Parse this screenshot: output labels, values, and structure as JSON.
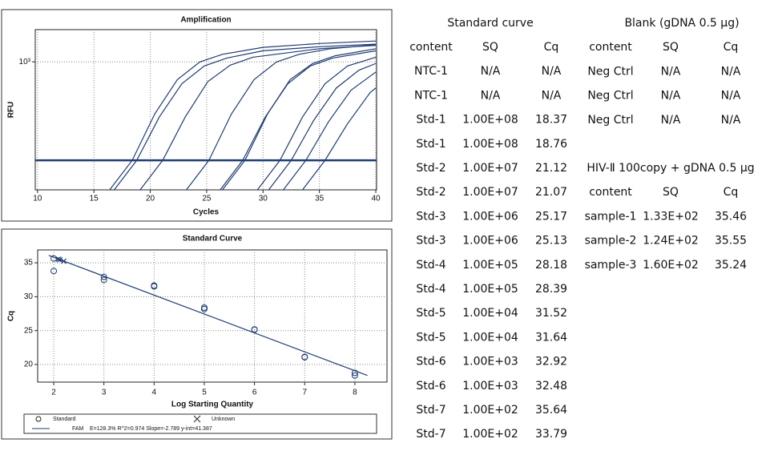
{
  "chart_data": [
    {
      "type": "line",
      "title": "Amplification",
      "x_label": "Cycles",
      "y_label": "RFU",
      "log_y": true,
      "grid": true,
      "color": "#1f3b73",
      "xlim": [
        9.8,
        40.07
      ],
      "xticks": [
        10,
        15,
        20,
        25,
        30,
        35,
        40
      ],
      "ylim": [
        200,
        1500
      ],
      "yticks": [
        {
          "value": 1000,
          "label": "10³"
        }
      ],
      "threshold": 290,
      "series": [
        {
          "x": [
            14.4,
            16.4,
            18.4,
            20.4,
            22.4,
            24.4,
            26.4,
            30,
            35,
            40
          ],
          "values": [
            150,
            200,
            290,
            520,
            800,
            1000,
            1100,
            1200,
            1260,
            1300
          ]
        },
        {
          "x": [
            14.8,
            16.8,
            18.8,
            20.8,
            22.8,
            24.8,
            26.8,
            30,
            35,
            40
          ],
          "values": [
            150,
            200,
            290,
            500,
            760,
            950,
            1050,
            1150,
            1210,
            1250
          ]
        },
        {
          "x": [
            17.1,
            19.1,
            21.1,
            23.1,
            25.1,
            27.1,
            29.1,
            35,
            40
          ],
          "values": [
            150,
            200,
            290,
            500,
            780,
            960,
            1060,
            1180,
            1230
          ]
        },
        {
          "x": [
            21.2,
            23.2,
            25.2,
            27.2,
            29.2,
            31.2,
            33.2,
            36,
            40
          ],
          "values": [
            150,
            200,
            290,
            520,
            800,
            1000,
            1100,
            1180,
            1240
          ]
        },
        {
          "x": [
            24.2,
            26.2,
            28.2,
            30.2,
            32.2,
            34.2,
            36.2,
            40
          ],
          "values": [
            150,
            200,
            290,
            500,
            760,
            950,
            1050,
            1150
          ]
        },
        {
          "x": [
            24.4,
            26.4,
            28.4,
            30.4,
            32.4,
            34.4,
            36.4,
            40
          ],
          "values": [
            150,
            200,
            290,
            520,
            800,
            980,
            1080,
            1180
          ]
        },
        {
          "x": [
            27.5,
            29.5,
            31.5,
            33.5,
            35.5,
            37.5,
            40
          ],
          "values": [
            150,
            200,
            290,
            500,
            760,
            950,
            1060
          ]
        },
        {
          "x": [
            28.5,
            30.5,
            32.5,
            34.5,
            36.5,
            38.5,
            40
          ],
          "values": [
            150,
            200,
            290,
            480,
            720,
            900,
            980
          ]
        },
        {
          "x": [
            29.8,
            31.8,
            33.8,
            35.8,
            37.8,
            40
          ],
          "values": [
            150,
            200,
            290,
            470,
            700,
            880
          ]
        },
        {
          "x": [
            31.5,
            33.5,
            35.5,
            37.5,
            39.5,
            40
          ],
          "values": [
            150,
            200,
            290,
            460,
            680,
            720
          ]
        }
      ]
    },
    {
      "type": "scatter",
      "title": "Standard Curve",
      "x_label": "Log Starting Quantity",
      "y_label": "Cq",
      "grid": true,
      "color": "#1f3b73",
      "xlim": [
        1.68,
        8.64
      ],
      "xticks": [
        2,
        3,
        4,
        5,
        6,
        7,
        8
      ],
      "ylim": [
        17.4,
        36.9
      ],
      "yticks": [
        20,
        25,
        30,
        35
      ],
      "series": [
        {
          "name": "Standard",
          "marker": "circle",
          "x": [
            8,
            8,
            7,
            7,
            6,
            6,
            5,
            5,
            4,
            4,
            3,
            3,
            2,
            2
          ],
          "values": [
            18.37,
            18.76,
            21.12,
            21.07,
            25.17,
            25.13,
            28.18,
            28.39,
            31.52,
            31.64,
            32.92,
            32.48,
            35.64,
            33.79
          ]
        },
        {
          "name": "Unknown",
          "marker": "x",
          "x": [
            2.12,
            2.09,
            2.2
          ],
          "values": [
            35.46,
            35.55,
            35.24
          ]
        },
        {
          "name": "FAM",
          "marker": "line",
          "fit_label": "E=128.3% R^2=0.974 Slope=-2.789 y-int=41.387",
          "x": [
            1.9,
            8.25
          ],
          "values": [
            36.09,
            18.38
          ]
        }
      ]
    }
  ],
  "tables": [
    {
      "title": "Standard curve",
      "columns": [
        "content",
        "SQ",
        "Cq"
      ],
      "rows": [
        [
          "NTC-1",
          "N/A",
          "N/A"
        ],
        [
          "NTC-1",
          "N/A",
          "N/A"
        ],
        [
          "Std-1",
          "1.00E+08",
          "18.37"
        ],
        [
          "Std-1",
          "1.00E+08",
          "18.76"
        ],
        [
          "Std-2",
          "1.00E+07",
          "21.12"
        ],
        [
          "Std-2",
          "1.00E+07",
          "21.07"
        ],
        [
          "Std-3",
          "1.00E+06",
          "25.17"
        ],
        [
          "Std-3",
          "1.00E+06",
          "25.13"
        ],
        [
          "Std-4",
          "1.00E+05",
          "28.18"
        ],
        [
          "Std-4",
          "1.00E+05",
          "28.39"
        ],
        [
          "Std-5",
          "1.00E+04",
          "31.52"
        ],
        [
          "Std-5",
          "1.00E+04",
          "31.64"
        ],
        [
          "Std-6",
          "1.00E+03",
          "32.92"
        ],
        [
          "Std-6",
          "1.00E+03",
          "32.48"
        ],
        [
          "Std-7",
          "1.00E+02",
          "35.64"
        ],
        [
          "Std-7",
          "1.00E+02",
          "33.79"
        ]
      ]
    },
    {
      "title": "Blank (gDNA 0.5 μg)",
      "columns": [
        "content",
        "SQ",
        "Cq"
      ],
      "rows": [
        [
          "Neg Ctrl",
          "N/A",
          "N/A"
        ],
        [
          "Neg Ctrl",
          "N/A",
          "N/A"
        ],
        [
          "Neg Ctrl",
          "N/A",
          "N/A"
        ]
      ]
    },
    {
      "title": "HIV-Ⅱ 100copy + gDNA 0.5 μg",
      "columns": [
        "content",
        "SQ",
        "Cq"
      ],
      "rows": [
        [
          "sample-1",
          "1.33E+02",
          "35.46"
        ],
        [
          "sample-2",
          "1.24E+02",
          "35.55"
        ],
        [
          "sample-3",
          "1.60E+02",
          "35.24"
        ]
      ]
    }
  ]
}
